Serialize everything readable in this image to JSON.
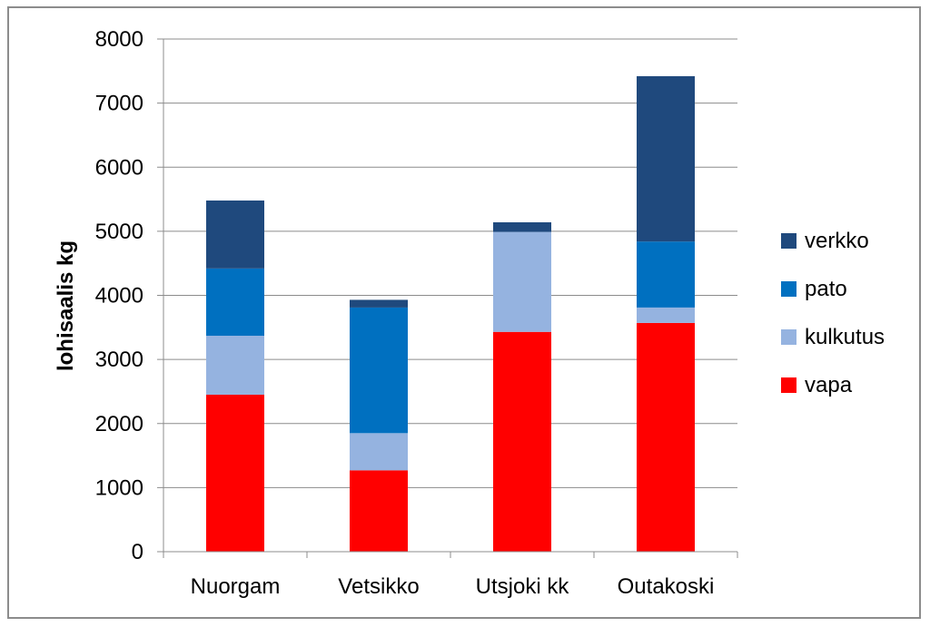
{
  "chart_data": {
    "type": "bar",
    "stacked": true,
    "categories": [
      "Nuorgam",
      "Vetsikko",
      "Utsjoki kk",
      "Outakoski"
    ],
    "series": [
      {
        "name": "vapa",
        "color": "#ff0000",
        "values": [
          2450,
          1270,
          3430,
          3570
        ]
      },
      {
        "name": "kulkutus",
        "color": "#95b3e0",
        "values": [
          920,
          580,
          1560,
          240
        ]
      },
      {
        "name": "pato",
        "color": "#0070c0",
        "values": [
          1050,
          1960,
          0,
          1030
        ]
      },
      {
        "name": "verkko",
        "color": "#1f497d",
        "values": [
          1060,
          120,
          150,
          2580
        ]
      }
    ],
    "title": "",
    "xlabel": "",
    "ylabel": "lohisaalis kg",
    "ylim": [
      0,
      8000
    ],
    "yticks": [
      0,
      1000,
      2000,
      3000,
      4000,
      5000,
      6000,
      7000,
      8000
    ],
    "grid": true,
    "legend_position": "right",
    "legend_order": [
      "verkko",
      "pato",
      "kulkutus",
      "vapa"
    ]
  }
}
